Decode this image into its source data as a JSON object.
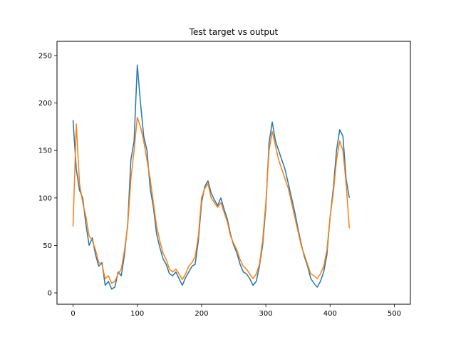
{
  "chart_data": {
    "type": "line",
    "title": "Test target vs output",
    "xlabel": "",
    "ylabel": "",
    "xlim": [
      -25,
      525
    ],
    "ylim": [
      -12,
      265
    ],
    "xticks": [
      0,
      100,
      200,
      300,
      400,
      500
    ],
    "yticks": [
      0,
      50,
      100,
      150,
      200,
      250
    ],
    "grid": false,
    "legend": "none",
    "x_start": 0,
    "x_step": 5,
    "series": [
      {
        "color": "#1f77b4",
        "values": [
          182,
          130,
          108,
          100,
          72,
          50,
          58,
          40,
          28,
          32,
          8,
          12,
          4,
          6,
          22,
          18,
          40,
          72,
          140,
          160,
          240,
          200,
          165,
          150,
          110,
          90,
          62,
          48,
          36,
          30,
          20,
          18,
          22,
          15,
          8,
          16,
          22,
          28,
          30,
          55,
          95,
          112,
          118,
          105,
          98,
          92,
          100,
          88,
          78,
          62,
          50,
          42,
          30,
          22,
          20,
          15,
          8,
          12,
          28,
          50,
          90,
          158,
          180,
          160,
          150,
          140,
          130,
          115,
          100,
          85,
          68,
          52,
          38,
          28,
          15,
          10,
          6,
          12,
          22,
          40,
          80,
          110,
          150,
          172,
          165,
          120,
          100
        ]
      },
      {
        "color": "#ff7f0e",
        "values": [
          70,
          178,
          115,
          95,
          80,
          60,
          55,
          45,
          32,
          30,
          15,
          18,
          10,
          12,
          20,
          25,
          45,
          70,
          120,
          150,
          185,
          175,
          160,
          140,
          120,
          95,
          70,
          55,
          42,
          35,
          25,
          22,
          25,
          20,
          14,
          20,
          28,
          32,
          38,
          60,
          100,
          110,
          115,
          100,
          95,
          90,
          95,
          85,
          75,
          60,
          52,
          45,
          35,
          28,
          25,
          20,
          15,
          20,
          30,
          55,
          95,
          150,
          170,
          155,
          140,
          130,
          120,
          110,
          95,
          80,
          65,
          50,
          40,
          30,
          20,
          18,
          15,
          20,
          28,
          45,
          80,
          105,
          140,
          160,
          150,
          115,
          68
        ]
      }
    ]
  }
}
